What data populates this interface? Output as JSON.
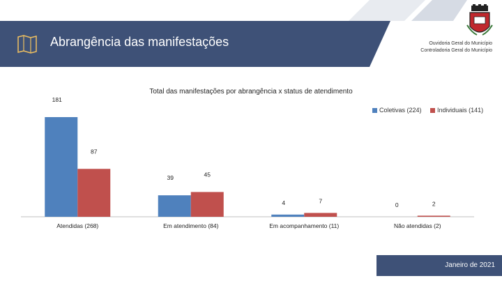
{
  "header": {
    "title": "Abrangência das manifestações",
    "org_line1": "Ouvidoria Geral do Município",
    "org_line2": "Controladoria Geral do Município",
    "icon": "book-map-icon",
    "logo": "municipal-crest-logo"
  },
  "footer": {
    "date": "Janeiro de 2021"
  },
  "colors": {
    "primary": "#3e5177",
    "series_coletivas": "#4f81bd",
    "series_individuais": "#c0504d"
  },
  "chart_data": {
    "type": "bar",
    "title": "Total das manifestações por abrangência x status de atendimento",
    "categories": [
      "Atendidas (268)",
      "Em atendimento (84)",
      "Em acompanhamento (11)",
      "Não atendidas (2)"
    ],
    "series": [
      {
        "name": "Coletivas (224)",
        "values": [
          181,
          39,
          4,
          0
        ]
      },
      {
        "name": "Individuais (141)",
        "values": [
          87,
          45,
          7,
          2
        ]
      }
    ],
    "ylim": [
      0,
      181
    ],
    "legend": "top-right",
    "grid": false
  }
}
